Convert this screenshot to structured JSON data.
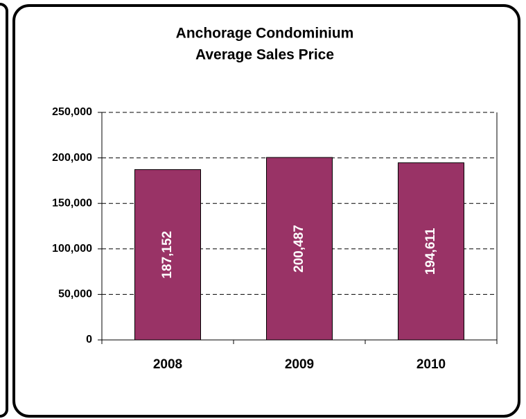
{
  "chart_data": {
    "type": "bar",
    "title": [
      "Anchorage Condominium",
      "Average Sales Price"
    ],
    "categories": [
      "2008",
      "2009",
      "2010"
    ],
    "values": [
      187152,
      200487,
      194611
    ],
    "value_labels": [
      "187,152",
      "200,487",
      "194,611"
    ],
    "color": "#993366",
    "ylim": [
      0,
      250000
    ],
    "yticks": [
      0,
      {
        "value": 50000,
        "label": "50,000"
      },
      {
        "value": 100000,
        "label": "100,000"
      },
      {
        "value": 150000,
        "label": "150,000"
      },
      {
        "value": 200000,
        "label": "200,000"
      },
      {
        "value": 250000,
        "label": "250,000"
      }
    ],
    "grid": true
  }
}
